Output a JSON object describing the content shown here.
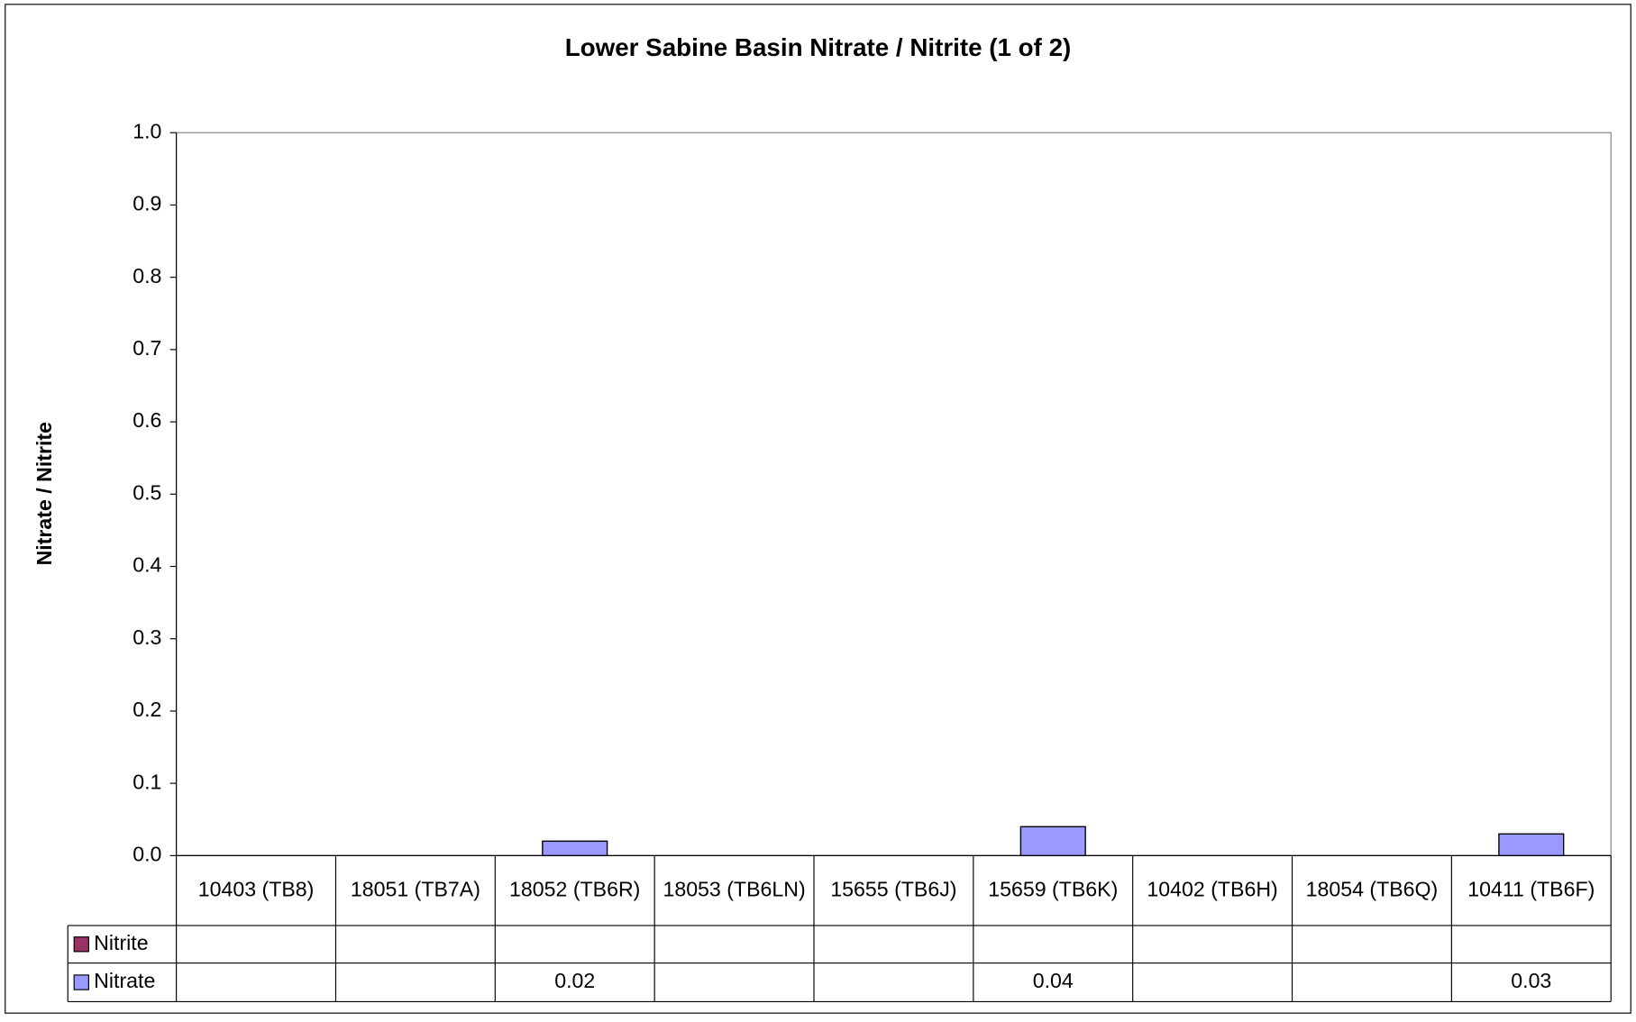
{
  "chart_data": {
    "type": "bar",
    "title": "Lower Sabine Basin Nitrate / Nitrite (1 of 2)",
    "y_label": "Nitrate / Nitrite",
    "categories": [
      "10403 (TB8)",
      "18051 (TB7A)",
      "18052 (TB6R)",
      "18053 (TB6LN)",
      "15655 (TB6J)",
      "15659 (TB6K)",
      "10402 (TB6H)",
      "18054 (TB6Q)",
      "10411 (TB6F)"
    ],
    "series": [
      {
        "name": "Nitrite",
        "color": "#993366",
        "values": [
          null,
          null,
          null,
          null,
          null,
          null,
          null,
          null,
          null
        ]
      },
      {
        "name": "Nitrate",
        "color": "#9999ff",
        "values": [
          null,
          null,
          0.02,
          null,
          null,
          0.04,
          null,
          null,
          0.03
        ]
      }
    ],
    "ylim": [
      0,
      1
    ],
    "yticks": [
      {
        "value": 0,
        "label": "0.0"
      },
      0.1,
      0.2,
      0.3,
      0.4,
      0.5,
      0.6,
      0.7,
      0.8,
      0.9,
      {
        "value": 1,
        "label": "1.0"
      }
    ],
    "grid": false
  }
}
